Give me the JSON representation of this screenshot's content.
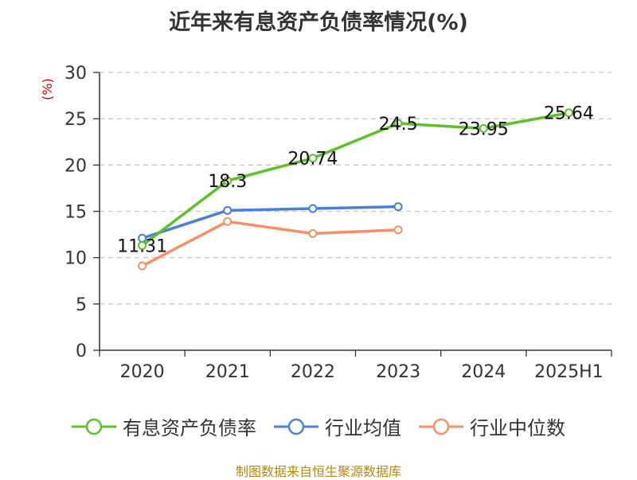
{
  "chart_data": {
    "type": "line",
    "title": "近年来有息资产负债率情况(%)",
    "ylabel": "(%)",
    "xlabel": "",
    "categories": [
      "2020",
      "2021",
      "2022",
      "2023",
      "2024",
      "2025H1"
    ],
    "ylim": [
      0,
      30
    ],
    "yticks": [
      0,
      5,
      10,
      15,
      20,
      25,
      30
    ],
    "grid": true,
    "legend_position": "bottom",
    "series": [
      {
        "name": "有息资产负债率",
        "color": "#5cc02b",
        "values": [
          11.31,
          18.3,
          20.74,
          24.5,
          23.95,
          25.64
        ],
        "labels": [
          "11.31",
          "18.3",
          "20.74",
          "24.5",
          "23.95",
          "25.64"
        ]
      },
      {
        "name": "行业均值",
        "color": "#4a80d4",
        "values": [
          12.1,
          15.1,
          15.3,
          15.5,
          null,
          null
        ]
      },
      {
        "name": "行业中位数",
        "color": "#f59066",
        "values": [
          9.1,
          13.9,
          12.6,
          13.0,
          null,
          null
        ]
      }
    ]
  },
  "footer": {
    "source": "制图数据来自恒生聚源数据库"
  }
}
